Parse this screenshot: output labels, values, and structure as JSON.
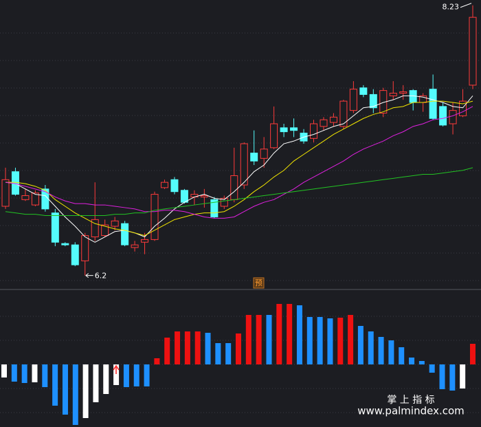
{
  "chart_data": [
    {
      "type": "candlestick",
      "open": [
        6.72,
        6.98,
        6.77,
        6.73,
        6.85,
        6.67,
        6.44,
        6.43,
        6.31,
        6.49,
        6.5,
        6.57,
        6.59,
        6.41,
        6.45,
        6.47,
        6.86,
        6.92,
        6.84,
        6.79,
        6.79,
        6.77,
        6.72,
        6.77,
        6.88,
        7.12,
        7.08,
        7.16,
        7.31,
        7.31,
        7.27,
        7.23,
        7.32,
        7.35,
        7.32,
        7.44,
        7.61,
        7.56,
        7.42,
        7.55,
        7.57,
        7.59,
        7.5,
        7.6,
        7.47,
        7.34,
        7.4,
        7.63
      ],
      "high": [
        7.01,
        7.01,
        6.85,
        6.84,
        6.88,
        6.7,
        6.45,
        6.45,
        6.52,
        6.9,
        6.62,
        6.64,
        6.61,
        6.46,
        6.52,
        6.83,
        6.92,
        6.94,
        6.85,
        6.84,
        6.85,
        6.79,
        6.8,
        7.16,
        7.2,
        7.29,
        7.24,
        7.47,
        7.34,
        7.38,
        7.3,
        7.37,
        7.39,
        7.42,
        7.52,
        7.66,
        7.63,
        7.6,
        7.61,
        7.66,
        7.63,
        7.6,
        7.57,
        7.71,
        7.5,
        7.5,
        7.6,
        8.23
      ],
      "low": [
        6.7,
        6.8,
        6.76,
        6.72,
        6.68,
        6.42,
        6.42,
        6.27,
        6.2,
        6.46,
        6.49,
        6.54,
        6.42,
        6.38,
        6.36,
        6.46,
        6.85,
        6.81,
        6.74,
        6.73,
        6.71,
        6.63,
        6.7,
        6.75,
        6.85,
        7.03,
        7.01,
        7.15,
        7.24,
        7.24,
        7.19,
        7.2,
        7.29,
        7.32,
        7.3,
        7.42,
        7.54,
        7.42,
        7.39,
        7.52,
        7.52,
        7.44,
        7.43,
        7.37,
        7.32,
        7.26,
        7.39,
        7.6
      ],
      "close": [
        6.92,
        6.81,
        6.8,
        6.82,
        6.7,
        6.45,
        6.43,
        6.28,
        6.5,
        6.62,
        6.58,
        6.61,
        6.43,
        6.43,
        6.47,
        6.81,
        6.9,
        6.83,
        6.75,
        6.81,
        6.8,
        6.64,
        6.78,
        6.95,
        7.19,
        7.06,
        7.15,
        7.34,
        7.28,
        7.29,
        7.21,
        7.34,
        7.37,
        7.39,
        7.51,
        7.6,
        7.56,
        7.46,
        7.59,
        7.57,
        7.58,
        7.5,
        7.55,
        7.38,
        7.33,
        7.44,
        7.51,
        8.14
      ],
      "up_color": "#ff3b3b",
      "down_color": "#54fcfc",
      "ylim": [
        6.1,
        8.27
      ],
      "marker": "预",
      "series": [
        {
          "color": "#ffffff",
          "values": [
            6.9,
            6.89,
            6.85,
            6.81,
            6.8,
            6.72,
            6.64,
            6.57,
            6.49,
            6.45,
            6.49,
            6.53,
            6.54,
            6.52,
            6.49,
            6.57,
            6.63,
            6.7,
            6.75,
            6.79,
            6.81,
            6.78,
            6.77,
            6.83,
            6.9,
            6.98,
            7.03,
            7.12,
            7.19,
            7.21,
            7.24,
            7.26,
            7.29,
            7.32,
            7.34,
            7.4,
            7.46,
            7.47,
            7.5,
            7.52,
            7.55,
            7.55,
            7.54,
            7.52,
            7.5,
            7.47,
            7.46,
            7.55
          ]
        },
        {
          "color": "#f2e600",
          "values": [
            6.9,
            6.9,
            6.89,
            6.87,
            6.84,
            6.77,
            6.72,
            6.67,
            6.63,
            6.59,
            6.57,
            6.55,
            6.54,
            6.52,
            6.5,
            6.54,
            6.58,
            6.62,
            6.64,
            6.66,
            6.67,
            6.67,
            6.68,
            6.72,
            6.77,
            6.83,
            6.88,
            6.94,
            6.99,
            7.06,
            7.11,
            7.16,
            7.21,
            7.26,
            7.3,
            7.34,
            7.38,
            7.41,
            7.43,
            7.46,
            7.47,
            7.5,
            7.5,
            7.51,
            7.51,
            7.5,
            7.49,
            7.51
          ]
        },
        {
          "color": "#e020e0",
          "values": [
            6.9,
            6.89,
            6.87,
            6.85,
            6.83,
            6.79,
            6.76,
            6.74,
            6.74,
            6.73,
            6.73,
            6.72,
            6.71,
            6.7,
            6.68,
            6.68,
            6.69,
            6.69,
            6.68,
            6.66,
            6.64,
            6.63,
            6.63,
            6.64,
            6.68,
            6.72,
            6.75,
            6.77,
            6.81,
            6.85,
            6.9,
            6.94,
            6.98,
            7.02,
            7.06,
            7.11,
            7.15,
            7.18,
            7.21,
            7.25,
            7.28,
            7.32,
            7.34,
            7.37,
            7.38,
            7.4,
            7.43,
            7.47
          ]
        },
        {
          "color": "#22c422",
          "values": [
            6.68,
            6.67,
            6.66,
            6.66,
            6.65,
            6.65,
            6.65,
            6.65,
            6.65,
            6.65,
            6.65,
            6.66,
            6.66,
            6.67,
            6.67,
            6.69,
            6.7,
            6.71,
            6.72,
            6.73,
            6.74,
            6.75,
            6.76,
            6.77,
            6.78,
            6.79,
            6.8,
            6.81,
            6.82,
            6.83,
            6.84,
            6.85,
            6.86,
            6.87,
            6.88,
            6.89,
            6.9,
            6.91,
            6.92,
            6.93,
            6.94,
            6.95,
            6.96,
            6.96,
            6.97,
            6.98,
            6.99,
            7.01
          ]
        }
      ]
    },
    {
      "type": "bar",
      "values": [
        -1.9,
        -2.5,
        -2.7,
        -2.6,
        -3.3,
        -6.0,
        -7.3,
        -8.8,
        -7.8,
        -5.5,
        -4.3,
        -3.0,
        -3.3,
        -3.2,
        -3.2,
        0.9,
        3.9,
        4.8,
        4.8,
        4.8,
        4.6,
        3.1,
        3.1,
        4.5,
        7.2,
        7.2,
        7.2,
        8.8,
        8.8,
        8.6,
        6.9,
        6.9,
        6.7,
        6.8,
        7.2,
        5.6,
        4.8,
        4.0,
        3.5,
        2.5,
        1.0,
        0.5,
        -1.2,
        -3.6,
        -3.8,
        -3.5,
        3.0
      ],
      "colors": [
        "#ffffff",
        "#1e90ff",
        "#1e90ff",
        "#ffffff",
        "#1e90ff",
        "#1e90ff",
        "#1e90ff",
        "#1e90ff",
        "#ffffff",
        "#ffffff",
        "#ffffff",
        "#ffffff",
        "#1e90ff",
        "#1e90ff",
        "#1e90ff",
        "#ee1111",
        "#ee1111",
        "#ee1111",
        "#ee1111",
        "#ee1111",
        "#1e90ff",
        "#1e90ff",
        "#1e90ff",
        "#ee1111",
        "#ee1111",
        "#ee1111",
        "#1e90ff",
        "#ee1111",
        "#ee1111",
        "#1e90ff",
        "#1e90ff",
        "#1e90ff",
        "#1e90ff",
        "#ee1111",
        "#ee1111",
        "#1e90ff",
        "#1e90ff",
        "#1e90ff",
        "#1e90ff",
        "#1e90ff",
        "#1e90ff",
        "#1e90ff",
        "#1e90ff",
        "#1e90ff",
        "#1e90ff",
        "#ffffff",
        "#ee1111"
      ],
      "ylim": [
        -9.1,
        10.5
      ]
    }
  ],
  "watermark": {
    "title": "掌 上 指 标",
    "url": "www.palmindex.com"
  }
}
